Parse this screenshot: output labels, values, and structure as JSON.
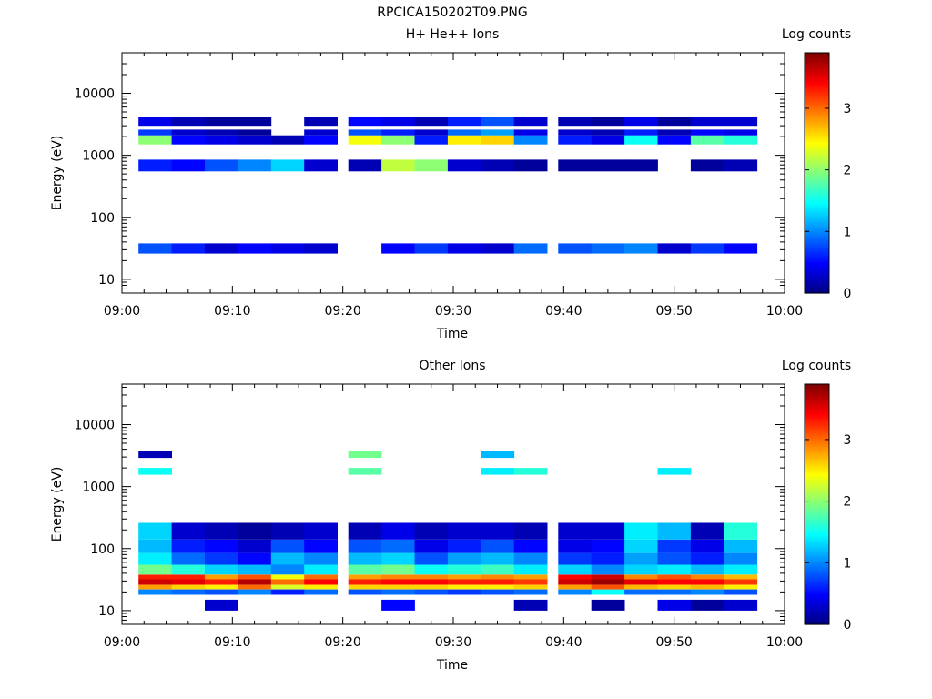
{
  "figure_title": "RPCICA150202T09.PNG",
  "colorbar": {
    "label": "Log counts",
    "ticks": [
      "0",
      "1",
      "2",
      "3"
    ],
    "range": [
      0,
      3.9
    ]
  },
  "x_tick_labels": [
    "09:00",
    "09:10",
    "09:20",
    "09:30",
    "09:40",
    "09:50",
    "10:00"
  ],
  "chart_data": [
    {
      "type": "heatmap",
      "title": "H+ He++ Ions",
      "xlabel": "Time",
      "ylabel": "Energy (eV)",
      "x_range": [
        "09:00",
        "10:00"
      ],
      "y_range": [
        6,
        45000
      ],
      "y_scale": "log",
      "y_tick_labels": [
        "10",
        "100",
        "1000",
        "10000"
      ],
      "time_bins": [
        "09:03",
        "09:06",
        "09:09",
        "09:12",
        "09:15",
        "09:18",
        "09:22",
        "09:25",
        "09:28",
        "09:31",
        "09:34",
        "09:37",
        "09:41",
        "09:44",
        "09:47",
        "09:50",
        "09:53",
        "09:56"
      ],
      "bands": [
        {
          "e_lo": 1500,
          "e_hi": 2100,
          "values": [
            2.0,
            0.5,
            0.4,
            0.3,
            0.2,
            0.5,
            2.4,
            2.0,
            0.6,
            2.5,
            2.6,
            1.0,
            0.6,
            0.4,
            1.5,
            0.5,
            1.8,
            1.6
          ]
        },
        {
          "e_lo": 2100,
          "e_hi": 2600,
          "values": [
            0.7,
            0.3,
            0.2,
            0.1,
            0.0,
            0.3,
            0.8,
            0.6,
            0.3,
            0.9,
            1.1,
            0.4,
            0.3,
            0.2,
            0.6,
            0.2,
            0.5,
            0.4
          ]
        },
        {
          "e_lo": 3000,
          "e_hi": 4200,
          "values": [
            0.4,
            0.2,
            0.1,
            0.1,
            0.0,
            0.2,
            0.5,
            0.4,
            0.2,
            0.6,
            0.8,
            0.3,
            0.2,
            0.1,
            0.4,
            0.1,
            0.3,
            0.3
          ]
        },
        {
          "e_lo": 550,
          "e_hi": 850,
          "values": [
            0.6,
            0.5,
            0.8,
            1.0,
            1.3,
            0.3,
            0.2,
            2.2,
            2.0,
            0.3,
            0.2,
            0.1,
            0.1,
            0.1,
            0.1,
            0.0,
            0.1,
            0.2
          ]
        },
        {
          "e_lo": 26,
          "e_hi": 38,
          "values": [
            0.8,
            0.6,
            0.3,
            0.5,
            0.4,
            0.3,
            0.0,
            0.5,
            0.7,
            0.4,
            0.3,
            0.9,
            0.8,
            0.9,
            1.0,
            0.3,
            0.7,
            0.5
          ]
        }
      ]
    },
    {
      "type": "heatmap",
      "title": "Other Ions",
      "xlabel": "Time",
      "ylabel": "Energy (eV)",
      "x_range": [
        "09:00",
        "10:00"
      ],
      "y_range": [
        6,
        45000
      ],
      "y_scale": "log",
      "y_tick_labels": [
        "10",
        "100",
        "1000",
        "10000"
      ],
      "time_bins": [
        "09:03",
        "09:06",
        "09:09",
        "09:12",
        "09:15",
        "09:18",
        "09:22",
        "09:25",
        "09:28",
        "09:31",
        "09:34",
        "09:37",
        "09:41",
        "09:44",
        "09:47",
        "09:50",
        "09:53",
        "09:56"
      ],
      "bands": [
        {
          "e_lo": 32,
          "e_hi": 38,
          "values": [
            3.3,
            3.3,
            2.8,
            3.1,
            2.4,
            3.0,
            2.8,
            2.9,
            2.9,
            2.8,
            2.9,
            2.8,
            3.4,
            3.6,
            2.9,
            3.1,
            2.9,
            2.7
          ]
        },
        {
          "e_lo": 26,
          "e_hi": 32,
          "values": [
            3.6,
            3.5,
            3.3,
            3.7,
            3.0,
            3.4,
            3.3,
            3.4,
            3.4,
            3.3,
            3.3,
            3.2,
            3.6,
            3.8,
            3.5,
            3.4,
            3.4,
            3.2
          ]
        },
        {
          "e_lo": 22,
          "e_hi": 26,
          "values": [
            2.8,
            2.6,
            2.5,
            3.0,
            2.3,
            2.5,
            2.6,
            2.6,
            2.6,
            2.5,
            2.5,
            2.6,
            2.8,
            3.1,
            2.7,
            2.6,
            2.7,
            2.5
          ]
        },
        {
          "e_lo": 18,
          "e_hi": 22,
          "values": [
            1.0,
            0.9,
            0.8,
            1.0,
            0.6,
            0.9,
            0.8,
            0.9,
            0.8,
            0.7,
            0.8,
            0.9,
            1.0,
            1.5,
            0.9,
            0.9,
            1.0,
            0.8
          ]
        },
        {
          "e_lo": 38,
          "e_hi": 55,
          "values": [
            1.9,
            1.6,
            1.3,
            1.2,
            1.0,
            1.4,
            1.8,
            1.9,
            1.5,
            1.6,
            1.7,
            1.4,
            1.3,
            1.0,
            1.3,
            1.4,
            1.2,
            1.4
          ]
        },
        {
          "e_lo": 55,
          "e_hi": 85,
          "values": [
            1.4,
            0.9,
            0.7,
            0.5,
            1.2,
            1.0,
            1.2,
            1.3,
            0.8,
            1.1,
            1.2,
            1.0,
            0.7,
            0.6,
            1.1,
            0.8,
            0.6,
            1.0
          ]
        },
        {
          "e_lo": 85,
          "e_hi": 140,
          "values": [
            1.2,
            0.6,
            0.5,
            0.3,
            0.8,
            0.5,
            0.8,
            0.9,
            0.4,
            0.6,
            0.8,
            0.5,
            0.4,
            0.5,
            1.3,
            0.7,
            0.4,
            1.2
          ]
        },
        {
          "e_lo": 140,
          "e_hi": 260,
          "values": [
            1.3,
            0.3,
            0.2,
            0.1,
            0.2,
            0.3,
            0.2,
            0.4,
            0.2,
            0.3,
            0.3,
            0.2,
            0.3,
            0.3,
            1.4,
            1.2,
            0.2,
            1.6
          ]
        },
        {
          "e_lo": 1550,
          "e_hi": 2000,
          "values": [
            1.5,
            0.0,
            0.0,
            0.0,
            0.0,
            0.0,
            1.8,
            0.0,
            0.0,
            0.0,
            1.4,
            1.6,
            0.0,
            0.0,
            0.0,
            1.4,
            0.0,
            0.0
          ]
        },
        {
          "e_lo": 2900,
          "e_hi": 3700,
          "values": [
            0.2,
            0.0,
            0.0,
            0.0,
            0.0,
            0.0,
            1.9,
            0.0,
            0.0,
            0.0,
            1.2,
            0.0,
            0.0,
            0.0,
            0.0,
            0.0,
            0.0,
            0.0
          ]
        },
        {
          "e_lo": 10,
          "e_hi": 15,
          "values": [
            0.0,
            0.0,
            0.3,
            0.0,
            0.0,
            0.0,
            0.0,
            0.5,
            0.0,
            0.0,
            0.0,
            0.2,
            0.0,
            0.1,
            0.0,
            0.4,
            0.1,
            0.3
          ]
        }
      ]
    }
  ]
}
